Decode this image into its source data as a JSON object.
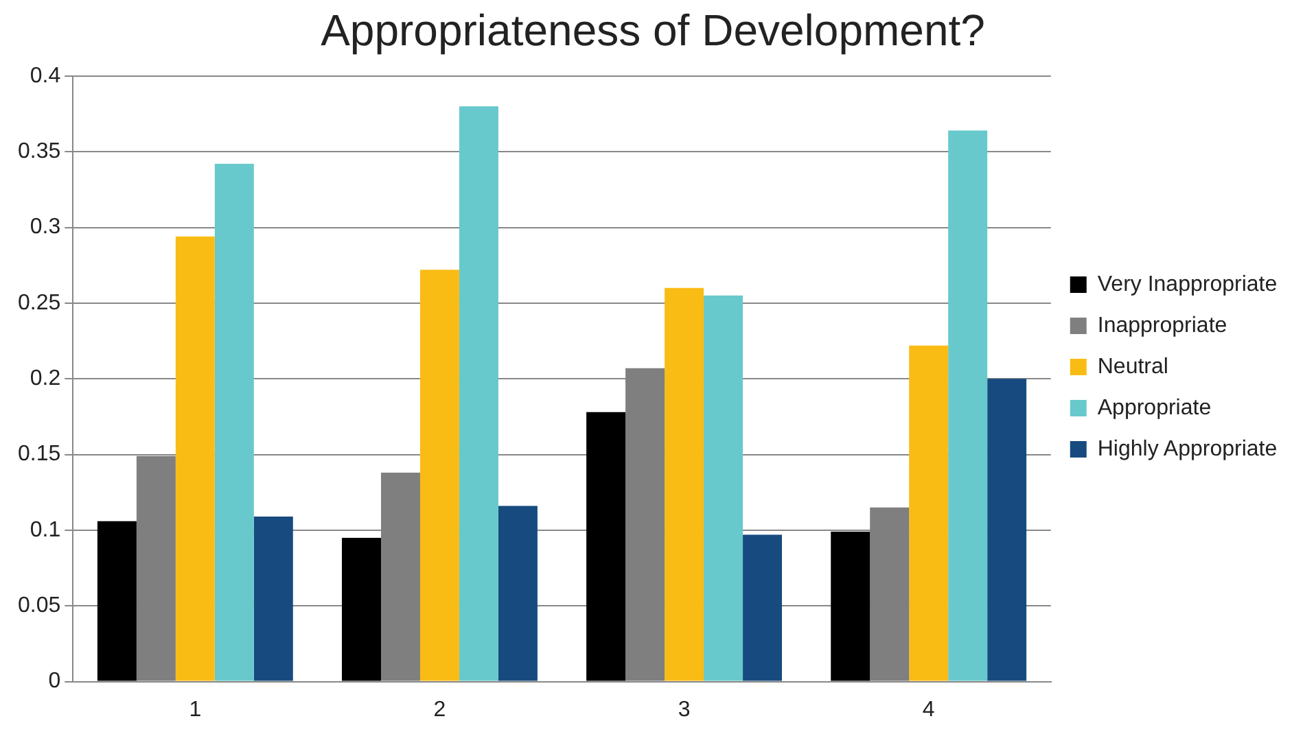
{
  "chart_data": {
    "type": "bar",
    "title": "Appropriateness of Development?",
    "categories": [
      "1",
      "2",
      "3",
      "4"
    ],
    "series": [
      {
        "name": "Very Inappropriate",
        "color": "#000000",
        "values": [
          0.106,
          0.095,
          0.178,
          0.099
        ]
      },
      {
        "name": "Inappropriate",
        "color": "#7f7f7f",
        "values": [
          0.149,
          0.138,
          0.207,
          0.115
        ]
      },
      {
        "name": "Neutral",
        "color": "#f9bc15",
        "values": [
          0.294,
          0.272,
          0.26,
          0.222
        ]
      },
      {
        "name": "Appropriate",
        "color": "#68c9cc",
        "values": [
          0.342,
          0.38,
          0.255,
          0.364
        ]
      },
      {
        "name": "Highly Appropriate",
        "color": "#174b7f",
        "values": [
          0.109,
          0.116,
          0.097,
          0.2
        ]
      }
    ],
    "ylim": [
      0,
      0.4
    ],
    "yticks": [
      0,
      0.05,
      0.1,
      0.15,
      0.2,
      0.25,
      0.3,
      0.35,
      0.4
    ],
    "grid": "y",
    "legend": "right"
  }
}
